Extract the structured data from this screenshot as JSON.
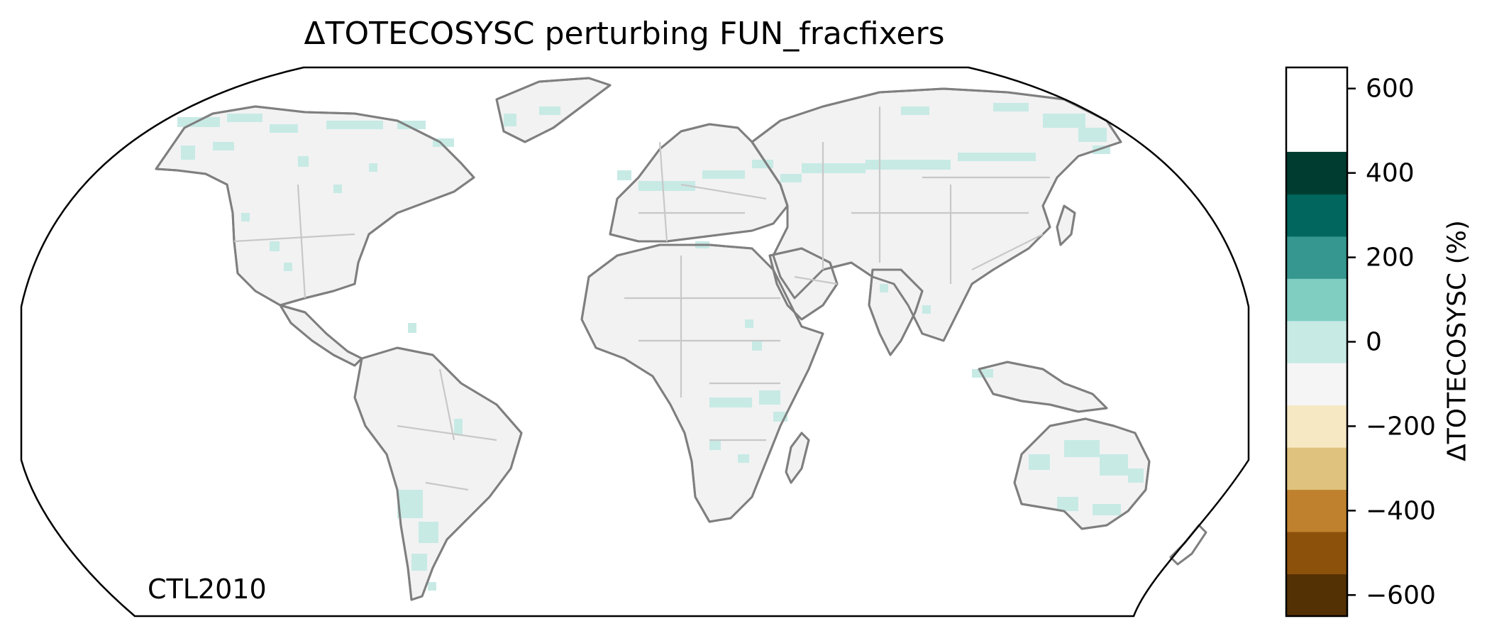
{
  "title": "ΔTOTECOSYSC perturbing FUN_fracfixers",
  "panel_label": "CTL2010",
  "map": {
    "projection": "Robinson",
    "land_color": "#f2f2f2",
    "coastline_color": "#7f7f7f",
    "border_color": "#c8c8c8",
    "ocean_color": "#ffffff",
    "highlight_color": "#c7eae5"
  },
  "colorbar": {
    "label": "ΔTOTECOSYSC (%)",
    "bins": [
      {
        "from": -650,
        "to": -550,
        "color": "#543005"
      },
      {
        "from": -550,
        "to": -450,
        "color": "#8c510a"
      },
      {
        "from": -450,
        "to": -350,
        "color": "#bf812d"
      },
      {
        "from": -350,
        "to": -250,
        "color": "#dfc27d"
      },
      {
        "from": -250,
        "to": -150,
        "color": "#f6e8c3"
      },
      {
        "from": -150,
        "to": -50,
        "color": "#f5f5f5"
      },
      {
        "from": -50,
        "to": 50,
        "color": "#c7eae5"
      },
      {
        "from": 50,
        "to": 150,
        "color": "#80cdc1"
      },
      {
        "from": 150,
        "to": 250,
        "color": "#35978f"
      },
      {
        "from": 250,
        "to": 350,
        "color": "#01665e"
      },
      {
        "from": 350,
        "to": 450,
        "color": "#003c30"
      }
    ],
    "ticks": [
      {
        "value": 600,
        "label": "600"
      },
      {
        "value": 400,
        "label": "400"
      },
      {
        "value": 200,
        "label": "200"
      },
      {
        "value": 0,
        "label": "0"
      },
      {
        "value": -200,
        "label": "−200"
      },
      {
        "value": -400,
        "label": "−400"
      },
      {
        "value": -600,
        "label": "−600"
      }
    ],
    "range": [
      -650,
      650
    ]
  }
}
